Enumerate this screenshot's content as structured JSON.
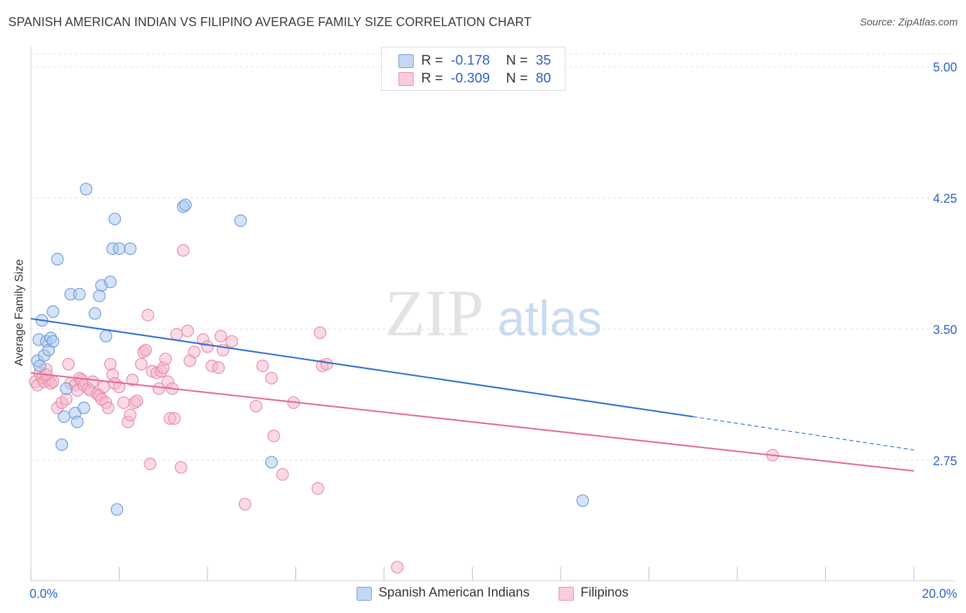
{
  "title": "SPANISH AMERICAN INDIAN VS FILIPINO AVERAGE FAMILY SIZE CORRELATION CHART",
  "source": "Source: ZipAtlas.com",
  "watermark": {
    "zip": "ZIP",
    "atlas": "atlas"
  },
  "legend": {
    "blue": {
      "r_label": "R =",
      "r_value": "-0.178",
      "n_label": "N =",
      "n_value": "35"
    },
    "pink": {
      "r_label": "R =",
      "r_value": "-0.309",
      "n_label": "N =",
      "n_value": "80"
    }
  },
  "colors": {
    "blue_fill": "#a9c7ef",
    "blue_stroke": "#6f9bd8",
    "blue_line": "#2e6fd0",
    "pink_fill": "#f5b6c9",
    "pink_stroke": "#e88aa8",
    "pink_line": "#e46b95",
    "axis_label": "#2c62c6",
    "grid": "#dedede"
  },
  "chart_data": {
    "type": "scatter",
    "title": "SPANISH AMERICAN INDIAN VS FILIPINO AVERAGE FAMILY SIZE CORRELATION CHART",
    "xlabel": "",
    "ylabel": "Average Family Size",
    "xlim": [
      0,
      20
    ],
    "ylim": [
      2.0,
      5.1
    ],
    "x_tick_labels": [
      "0.0%",
      "20.0%"
    ],
    "y_ticks": [
      2.75,
      3.5,
      4.25,
      5.0
    ],
    "y_tick_labels": [
      "2.75",
      "3.50",
      "4.25",
      "5.00"
    ],
    "grid": true,
    "legend_position": "top-center",
    "series": [
      {
        "name": "Spanish American Indians",
        "color": "blue",
        "points": [
          [
            0.15,
            3.32
          ],
          [
            0.2,
            3.29
          ],
          [
            0.18,
            3.44
          ],
          [
            0.25,
            3.55
          ],
          [
            0.3,
            3.35
          ],
          [
            0.35,
            3.43
          ],
          [
            0.4,
            3.38
          ],
          [
            0.45,
            3.45
          ],
          [
            0.5,
            3.6
          ],
          [
            0.5,
            3.43
          ],
          [
            0.6,
            3.9
          ],
          [
            0.7,
            2.84
          ],
          [
            0.75,
            3.0
          ],
          [
            0.8,
            3.16
          ],
          [
            0.9,
            3.7
          ],
          [
            1.0,
            3.02
          ],
          [
            1.05,
            2.97
          ],
          [
            1.1,
            3.7
          ],
          [
            1.2,
            3.05
          ],
          [
            1.25,
            4.3
          ],
          [
            1.45,
            3.59
          ],
          [
            1.55,
            3.69
          ],
          [
            1.6,
            3.75
          ],
          [
            1.7,
            3.46
          ],
          [
            1.8,
            3.77
          ],
          [
            1.85,
            3.96
          ],
          [
            1.9,
            4.13
          ],
          [
            1.95,
            2.47
          ],
          [
            2.0,
            3.96
          ],
          [
            2.25,
            3.96
          ],
          [
            3.45,
            4.2
          ],
          [
            3.5,
            4.21
          ],
          [
            4.75,
            4.12
          ],
          [
            5.45,
            2.74
          ],
          [
            12.5,
            2.52
          ]
        ],
        "trend": {
          "x_start": 0,
          "y_start": 3.56,
          "x_solid_end": 15.0,
          "y_solid_end": 3.0,
          "x_end": 20,
          "y_end": 2.81
        }
      },
      {
        "name": "Filipinos",
        "color": "pink",
        "points": [
          [
            0.1,
            3.2
          ],
          [
            0.15,
            3.18
          ],
          [
            0.2,
            3.25
          ],
          [
            0.25,
            3.22
          ],
          [
            0.3,
            3.2
          ],
          [
            0.35,
            3.27
          ],
          [
            0.4,
            3.21
          ],
          [
            0.45,
            3.19
          ],
          [
            0.5,
            3.2
          ],
          [
            0.6,
            3.05
          ],
          [
            0.7,
            3.08
          ],
          [
            0.8,
            3.1
          ],
          [
            0.85,
            3.3
          ],
          [
            0.9,
            3.19
          ],
          [
            1.0,
            3.18
          ],
          [
            1.05,
            3.15
          ],
          [
            1.1,
            3.22
          ],
          [
            1.15,
            3.21
          ],
          [
            1.2,
            3.18
          ],
          [
            1.3,
            3.16
          ],
          [
            1.35,
            3.15
          ],
          [
            1.4,
            3.2
          ],
          [
            1.5,
            3.13
          ],
          [
            1.55,
            3.12
          ],
          [
            1.6,
            3.1
          ],
          [
            1.65,
            3.17
          ],
          [
            1.7,
            3.08
          ],
          [
            1.75,
            3.05
          ],
          [
            1.8,
            3.3
          ],
          [
            1.85,
            3.24
          ],
          [
            1.9,
            3.19
          ],
          [
            2.0,
            3.17
          ],
          [
            2.1,
            3.08
          ],
          [
            2.2,
            2.97
          ],
          [
            2.25,
            3.01
          ],
          [
            2.3,
            3.21
          ],
          [
            2.35,
            3.08
          ],
          [
            2.4,
            3.09
          ],
          [
            2.5,
            3.3
          ],
          [
            2.55,
            3.37
          ],
          [
            2.6,
            3.38
          ],
          [
            2.65,
            3.58
          ],
          [
            2.7,
            2.73
          ],
          [
            2.75,
            3.26
          ],
          [
            2.85,
            3.25
          ],
          [
            2.9,
            3.16
          ],
          [
            2.95,
            3.26
          ],
          [
            3.0,
            3.28
          ],
          [
            3.05,
            3.33
          ],
          [
            3.1,
            3.2
          ],
          [
            3.15,
            2.99
          ],
          [
            3.2,
            3.16
          ],
          [
            3.25,
            2.99
          ],
          [
            3.3,
            3.47
          ],
          [
            3.4,
            2.71
          ],
          [
            3.45,
            3.95
          ],
          [
            3.55,
            3.49
          ],
          [
            3.6,
            3.32
          ],
          [
            3.7,
            3.37
          ],
          [
            3.9,
            3.44
          ],
          [
            4.0,
            3.4
          ],
          [
            4.1,
            3.29
          ],
          [
            4.25,
            3.28
          ],
          [
            4.3,
            3.46
          ],
          [
            4.35,
            3.38
          ],
          [
            4.55,
            3.43
          ],
          [
            4.85,
            2.5
          ],
          [
            5.1,
            3.06
          ],
          [
            5.25,
            3.29
          ],
          [
            5.45,
            3.22
          ],
          [
            5.5,
            2.89
          ],
          [
            5.7,
            2.67
          ],
          [
            5.95,
            3.08
          ],
          [
            6.5,
            2.59
          ],
          [
            6.55,
            3.48
          ],
          [
            6.6,
            3.29
          ],
          [
            6.7,
            3.3
          ],
          [
            8.3,
            2.14
          ],
          [
            16.8,
            2.78
          ],
          [
            0.35,
            3.24
          ]
        ],
        "trend": {
          "x_start": 0,
          "y_start": 3.25,
          "x_solid_end": 20,
          "y_solid_end": 2.69,
          "x_end": 20,
          "y_end": 2.69
        }
      }
    ]
  }
}
